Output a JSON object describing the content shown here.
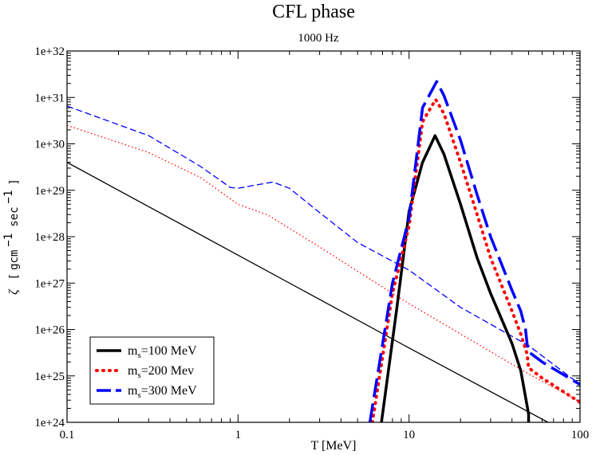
{
  "chart_data": {
    "type": "line",
    "title": "CFL phase",
    "subtitle": "1000 Hz",
    "xlabel": "T [MeV]",
    "ylabel": {
      "symbol": "ζ",
      "open": "[",
      "unit1": "gcm",
      "exp1": "−1",
      "unit2": "sec",
      "exp2": "−1",
      "close": "]"
    },
    "xscale": "log",
    "yscale": "log",
    "xlim": [
      0.1,
      100
    ],
    "ylim": [
      1e+24,
      1e+32
    ],
    "xticks": [
      {
        "value": 0.1,
        "label": "0.1"
      },
      {
        "value": 1,
        "label": "1"
      },
      {
        "value": 10,
        "label": "10"
      },
      {
        "value": 100,
        "label": "100"
      }
    ],
    "yticks": [
      {
        "value": 1e+24,
        "label": "1e+24"
      },
      {
        "value": 1e+25,
        "label": "1e+25"
      },
      {
        "value": 1e+26,
        "label": "1e+26"
      },
      {
        "value": 1e+27,
        "label": "1e+27"
      },
      {
        "value": 1e+28,
        "label": "1e+28"
      },
      {
        "value": 1e+29,
        "label": "1e+29"
      },
      {
        "value": 1e+30,
        "label": "1e+30"
      },
      {
        "value": 1e+31,
        "label": "1e+31"
      },
      {
        "value": 1e+32,
        "label": "1e+32"
      }
    ],
    "legend_position": "bottom-left",
    "legend": [
      {
        "prefix": "m",
        "sub": "s",
        "suffix": "=100 MeV",
        "color": "#000000",
        "style": "solid"
      },
      {
        "prefix": "m",
        "sub": "s",
        "suffix": "=200 Mev",
        "color": "#ff0000",
        "style": "dotted"
      },
      {
        "prefix": "m",
        "sub": "s",
        "suffix": "=300 MeV",
        "color": "#0000ff",
        "style": "dashed"
      }
    ],
    "series": [
      {
        "name": "ms=100 MeV (thin)",
        "color": "#000000",
        "style": "solid",
        "weight": "thin",
        "points": [
          [
            0.1,
            4e+29
          ],
          [
            1,
            4e+27
          ],
          [
            10,
            4e+25
          ],
          [
            65,
            1e+24
          ]
        ]
      },
      {
        "name": "ms=200 Mev (thin)",
        "color": "#ff0000",
        "style": "dotted",
        "weight": "thin",
        "points": [
          [
            0.1,
            2.5e+30
          ],
          [
            0.3,
            6.5e+29
          ],
          [
            0.6,
            1.9e+29
          ],
          [
            1,
            5e+28
          ],
          [
            1.5,
            2.9e+28
          ],
          [
            2,
            1.5e+28
          ],
          [
            3,
            6e+27
          ],
          [
            5,
            1.8e+27
          ],
          [
            10,
            3.6e+26
          ],
          [
            20,
            8e+25
          ],
          [
            50,
            1.1e+25
          ],
          [
            100,
            2.8e+24
          ]
        ]
      },
      {
        "name": "ms=300 MeV (thin)",
        "color": "#0000ff",
        "style": "dashed",
        "weight": "thin",
        "points": [
          [
            0.1,
            6.5e+30
          ],
          [
            0.3,
            1.5e+30
          ],
          [
            0.6,
            3.3e+29
          ],
          [
            0.9,
            1.15e+29
          ],
          [
            1,
            1.1e+29
          ],
          [
            1.2,
            1.25e+29
          ],
          [
            1.6,
            1.5e+29
          ],
          [
            2,
            1.1e+29
          ],
          [
            3,
            3.3e+28
          ],
          [
            5,
            7.5e+27
          ],
          [
            10,
            1.9e+27
          ],
          [
            20,
            3e+26
          ],
          [
            50,
            4.5e+25
          ],
          [
            100,
            6.5e+24
          ]
        ]
      },
      {
        "name": "ms=100 MeV (peak)",
        "color": "#000000",
        "style": "solid",
        "weight": "thick",
        "points": [
          [
            6.9,
            1e+24
          ],
          [
            8.5,
            3e+26
          ],
          [
            10,
            3.5e+28
          ],
          [
            12,
            4e+29
          ],
          [
            14.2,
            1.5e+30
          ],
          [
            16,
            6e+29
          ],
          [
            20,
            5e+28
          ],
          [
            25,
            3.5e+27
          ],
          [
            30,
            6e+26
          ],
          [
            40,
            5e+25
          ],
          [
            45,
            1.3e+25
          ],
          [
            49,
            2.3e+24
          ],
          [
            50,
            1.5e+24
          ],
          [
            50,
            1e+24
          ]
        ]
      },
      {
        "name": "ms=200 Mev (peak)",
        "color": "#ff0000",
        "style": "dotted",
        "weight": "thick",
        "points": [
          [
            6.1,
            1e+24
          ],
          [
            8,
            6e+26
          ],
          [
            10,
            1.7e+28
          ],
          [
            12,
            3e+30
          ],
          [
            14.3,
            9e+30
          ],
          [
            16,
            4.5e+30
          ],
          [
            20,
            4e+29
          ],
          [
            25,
            3e+28
          ],
          [
            30,
            3.5e+27
          ],
          [
            40,
            2.5e+26
          ],
          [
            45,
            8e+25
          ],
          [
            49,
            3e+25
          ],
          [
            50,
            1.5e+25
          ],
          [
            60,
            9e+24
          ],
          [
            100,
            2.7e+24
          ]
        ]
      },
      {
        "name": "ms=300 MeV (peak)",
        "color": "#0000ff",
        "style": "dashed",
        "weight": "thick",
        "points": [
          [
            5.9,
            1e+24
          ],
          [
            8,
            1e+27
          ],
          [
            10,
            2.5e+28
          ],
          [
            12,
            6e+30
          ],
          [
            14.5,
            2.2e+31
          ],
          [
            16,
            1.1e+31
          ],
          [
            20,
            1.2e+30
          ],
          [
            25,
            8e+28
          ],
          [
            30,
            1e+28
          ],
          [
            40,
            7e+26
          ],
          [
            45,
            2.5e+26
          ],
          [
            48,
            1e+26
          ],
          [
            49,
            5e+25
          ],
          [
            50,
            3.3e+25
          ],
          [
            60,
            2e+25
          ],
          [
            100,
            6.5e+24
          ]
        ]
      }
    ]
  }
}
